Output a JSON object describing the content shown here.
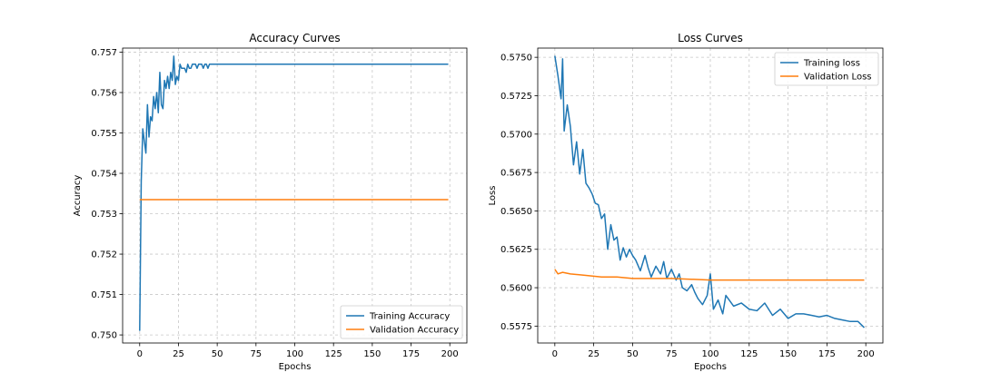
{
  "chart_data": [
    {
      "type": "line",
      "title": "Accuracy Curves",
      "xlabel": "Epochs",
      "ylabel": "Accuracy",
      "xlim": [
        -11,
        211
      ],
      "ylim": [
        0.7498,
        0.7571
      ],
      "xticks": [
        0,
        25,
        50,
        75,
        100,
        125,
        150,
        175,
        200
      ],
      "yticks": [
        0.75,
        0.751,
        0.752,
        0.753,
        0.754,
        0.755,
        0.756,
        0.757
      ],
      "ytick_decimals": 3,
      "grid": true,
      "legend_position": "bottom-right",
      "series": [
        {
          "name": "Training Accuracy",
          "color": "#1f77b4",
          "x": [
            0,
            1,
            2,
            3,
            4,
            5,
            6,
            7,
            8,
            9,
            10,
            11,
            12,
            13,
            14,
            15,
            16,
            17,
            18,
            19,
            20,
            21,
            22,
            23,
            24,
            25,
            26,
            27,
            28,
            29,
            30,
            31,
            32,
            33,
            34,
            35,
            36,
            37,
            38,
            39,
            40,
            41,
            42,
            43,
            44,
            45,
            46,
            47,
            48,
            49,
            50,
            60,
            70,
            80,
            90,
            100,
            110,
            120,
            130,
            140,
            150,
            160,
            170,
            180,
            190,
            199
          ],
          "y": [
            0.7501,
            0.7538,
            0.7551,
            0.7548,
            0.7545,
            0.7557,
            0.7549,
            0.7554,
            0.7553,
            0.7559,
            0.7556,
            0.756,
            0.7555,
            0.7565,
            0.7557,
            0.7556,
            0.7563,
            0.7561,
            0.7564,
            0.7561,
            0.7565,
            0.7563,
            0.7569,
            0.7562,
            0.7564,
            0.7563,
            0.7567,
            0.7566,
            0.7566,
            0.7566,
            0.7565,
            0.7567,
            0.7566,
            0.7566,
            0.7567,
            0.7567,
            0.7567,
            0.7566,
            0.7567,
            0.7567,
            0.7567,
            0.7566,
            0.7567,
            0.7567,
            0.7566,
            0.7567,
            0.7567,
            0.7567,
            0.7567,
            0.7567,
            0.7567,
            0.7567,
            0.7567,
            0.7567,
            0.7567,
            0.7567,
            0.7567,
            0.7567,
            0.7567,
            0.7567,
            0.7567,
            0.7567,
            0.7567,
            0.7567,
            0.7567,
            0.7567
          ]
        },
        {
          "name": "Validation Accuracy",
          "color": "#ff7f0e",
          "x": [
            0,
            199
          ],
          "y": [
            0.75335,
            0.75335
          ]
        }
      ]
    },
    {
      "type": "line",
      "title": "Loss Curves",
      "xlabel": "Epochs",
      "ylabel": "Loss",
      "xlim": [
        -11,
        211
      ],
      "ylim": [
        0.5564,
        0.5756
      ],
      "xticks": [
        0,
        25,
        50,
        75,
        100,
        125,
        150,
        175,
        200
      ],
      "yticks": [
        0.5575,
        0.56,
        0.5625,
        0.565,
        0.5675,
        0.57,
        0.5725,
        0.575
      ],
      "ytick_decimals": 4,
      "grid": true,
      "legend_position": "top-right",
      "series": [
        {
          "name": "Training loss",
          "color": "#1f77b4",
          "x": [
            0,
            2,
            4,
            5,
            6,
            8,
            10,
            12,
            14,
            16,
            18,
            20,
            22,
            24,
            26,
            28,
            30,
            32,
            34,
            36,
            38,
            40,
            42,
            44,
            46,
            48,
            50,
            52,
            55,
            58,
            60,
            62,
            65,
            68,
            70,
            72,
            75,
            78,
            80,
            82,
            85,
            88,
            90,
            92,
            95,
            98,
            100,
            102,
            105,
            108,
            110,
            115,
            120,
            125,
            130,
            135,
            140,
            145,
            150,
            155,
            160,
            165,
            170,
            175,
            180,
            185,
            190,
            195,
            199
          ],
          "y": [
            0.5751,
            0.5738,
            0.5723,
            0.5749,
            0.5702,
            0.5719,
            0.5705,
            0.568,
            0.5695,
            0.5674,
            0.569,
            0.5668,
            0.5665,
            0.5661,
            0.5655,
            0.5654,
            0.5645,
            0.5648,
            0.5625,
            0.5641,
            0.5631,
            0.5633,
            0.5618,
            0.5626,
            0.562,
            0.5625,
            0.5621,
            0.5618,
            0.5611,
            0.5621,
            0.5613,
            0.5607,
            0.5614,
            0.5609,
            0.5617,
            0.5606,
            0.5612,
            0.5605,
            0.5609,
            0.56,
            0.5598,
            0.5602,
            0.5597,
            0.5593,
            0.5589,
            0.5595,
            0.5609,
            0.5586,
            0.5592,
            0.5583,
            0.5595,
            0.5588,
            0.559,
            0.5586,
            0.5585,
            0.559,
            0.5582,
            0.5586,
            0.558,
            0.5583,
            0.5583,
            0.5582,
            0.5581,
            0.5582,
            0.558,
            0.5579,
            0.5578,
            0.5578,
            0.5574
          ]
        },
        {
          "name": "Validation Loss",
          "color": "#ff7f0e",
          "x": [
            0,
            2,
            5,
            10,
            20,
            30,
            40,
            50,
            75,
            100,
            125,
            150,
            175,
            199
          ],
          "y": [
            0.5612,
            0.5609,
            0.561,
            0.5609,
            0.5608,
            0.5607,
            0.5607,
            0.5606,
            0.5606,
            0.5605,
            0.5605,
            0.5605,
            0.5605,
            0.5605
          ]
        }
      ]
    }
  ]
}
